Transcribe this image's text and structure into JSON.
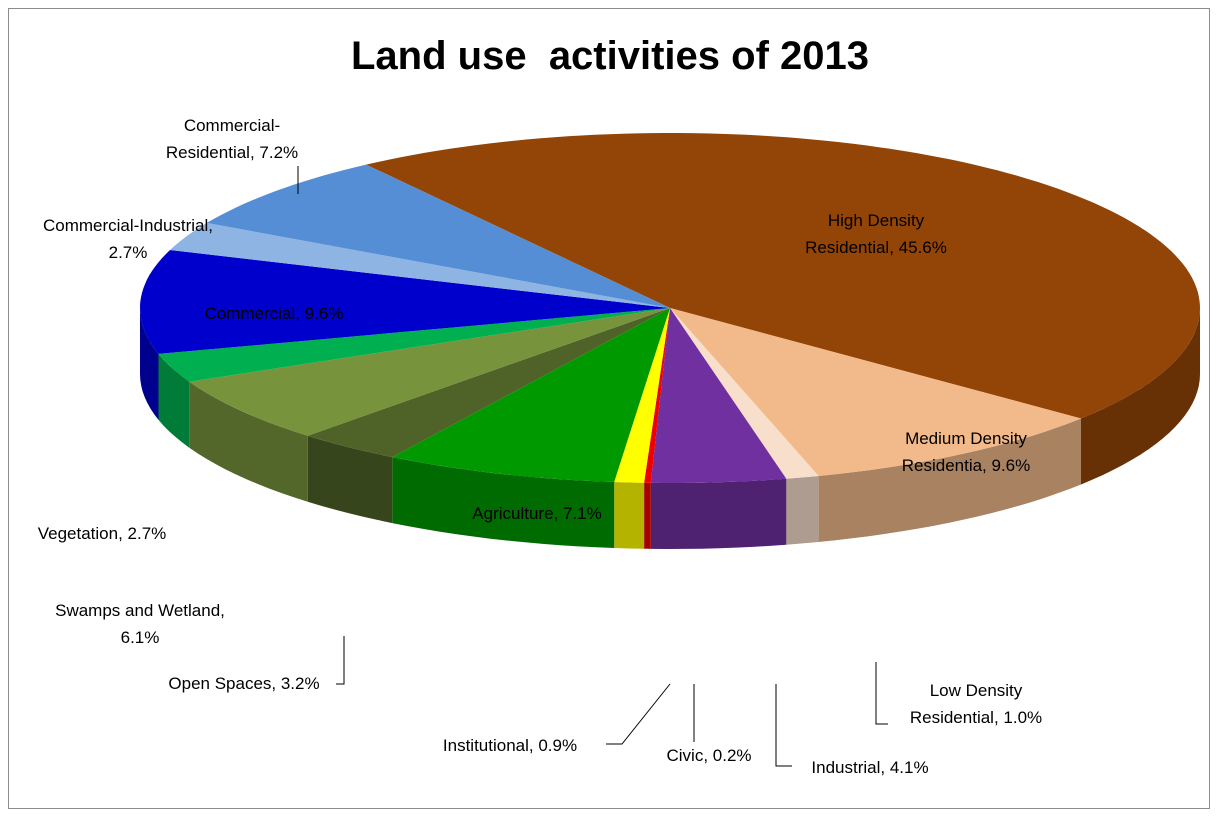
{
  "chart_data": {
    "type": "pie",
    "title": "Land use  activities of 2013",
    "slices": [
      {
        "category": "High Density Residential",
        "value": 45.6,
        "color": "#934507",
        "label_lines": [
          "High Density",
          "Residential, 45.6%"
        ]
      },
      {
        "category": "Medium Density Residentia",
        "value": 9.6,
        "color": "#f2b98a",
        "label_lines": [
          "Medium Density",
          "Residentia, 9.6%"
        ]
      },
      {
        "category": "Low Density Residential",
        "value": 1.0,
        "color": "#f7dfcc",
        "label_lines": [
          "Low Density",
          "Residential, 1.0%"
        ]
      },
      {
        "category": "Industrial",
        "value": 4.1,
        "color": "#7030a0",
        "label_lines": [
          "Industrial, 4.1%"
        ]
      },
      {
        "category": "Civic",
        "value": 0.2,
        "color": "#ee0000",
        "label_lines": [
          "Civic, 0.2%"
        ]
      },
      {
        "category": "Institutional",
        "value": 0.9,
        "color": "#ffff00",
        "label_lines": [
          "Institutional, 0.9%"
        ]
      },
      {
        "category": "Agriculture",
        "value": 7.1,
        "color": "#009900",
        "label_lines": [
          "Agriculture, 7.1%"
        ]
      },
      {
        "category": "Open Spaces",
        "value": 3.2,
        "color": "#4f6228",
        "label_lines": [
          "Open Spaces, 3.2%"
        ]
      },
      {
        "category": "Swamps and Wetland",
        "value": 6.1,
        "color": "#77933c",
        "label_lines": [
          "Swamps and Wetland,",
          "6.1%"
        ]
      },
      {
        "category": "Vegetation",
        "value": 2.7,
        "color": "#00b050",
        "label_lines": [
          "Vegetation, 2.7%"
        ]
      },
      {
        "category": "Commercial",
        "value": 9.6,
        "color": "#0000cc",
        "label_lines": [
          "Commercial, 9.6%"
        ]
      },
      {
        "category": "Commercial-Industrial",
        "value": 2.7,
        "color": "#8db4e2",
        "label_lines": [
          "Commercial-Industrial,",
          "2.7%"
        ]
      },
      {
        "category": "Commercial-Residential",
        "value": 7.2,
        "color": "#558ed5",
        "label_lines": [
          "Commercial-",
          "Residential, 7.2%"
        ]
      }
    ],
    "legend": "none",
    "style": "3d-pie"
  }
}
